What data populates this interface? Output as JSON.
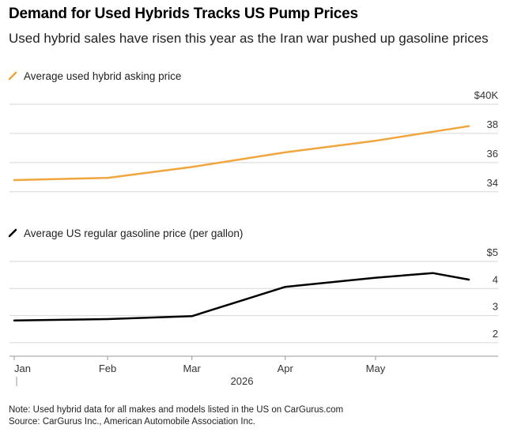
{
  "title": "Demand for Used Hybrids Tracks US Pump Prices",
  "subtitle": "Used hybrid sales have risen this year as the Iran war pushed up gasoline prices",
  "note": "Note: Used hybrid data for all makes and models listed in the US on CarGurus.com",
  "source": "Source: CarGurus Inc., American Automobile Association Inc.",
  "colors": {
    "hybrid": "#f0a63d",
    "gasoline": "#000000",
    "grid": "#d6d6d6"
  },
  "chart_data": [
    {
      "type": "line",
      "legend": "Average used hybrid asking price",
      "series": [
        {
          "x": [
            "2026-01-01",
            "2026-02-01",
            "2026-03-01",
            "2026-04-01",
            "2026-05-01",
            "2026-06-01"
          ],
          "values": [
            34.8,
            34.95,
            35.7,
            36.7,
            37.5,
            38.5
          ]
        }
      ],
      "ylim": [
        33.5,
        40
      ],
      "yticks": [
        34,
        36,
        38,
        40
      ],
      "ytick_labels": [
        "34",
        "36",
        "38",
        "$40K"
      ],
      "grid": true
    },
    {
      "type": "line",
      "legend": "Average US regular gasoline price (per gallon)",
      "series": [
        {
          "x": [
            "2026-01-01",
            "2026-02-01",
            "2026-03-01",
            "2026-04-01",
            "2026-05-01",
            "2026-05-20",
            "2026-06-01"
          ],
          "values": [
            2.82,
            2.87,
            2.98,
            4.06,
            4.4,
            4.57,
            4.33
          ]
        }
      ],
      "ylim": [
        1.5,
        5
      ],
      "yticks": [
        2,
        3,
        4,
        5
      ],
      "ytick_labels": [
        "2",
        "3",
        "4",
        "$5"
      ],
      "grid": true
    }
  ],
  "x_axis": {
    "labels": [
      "Jan",
      "Feb",
      "Mar",
      "Apr",
      "May"
    ],
    "dates": [
      "2026-01-01",
      "2026-02-01",
      "2026-03-01",
      "2026-04-01",
      "2026-05-01"
    ],
    "year_label": "2026"
  }
}
